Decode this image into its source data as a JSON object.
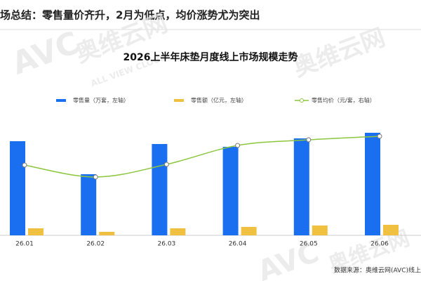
{
  "header": {
    "title": "场总结：零售量价齐升，2月为低点，均价涨势尤为突出"
  },
  "watermark": {
    "logo": "AVC",
    "name": "奥维云网",
    "tagline": "ALL VIEW CLOUD"
  },
  "source": "数据来源：奥维云网(AVC)线上",
  "chart_data": {
    "type": "bar",
    "title": "2026上半年床垫月度线上市场规模走势",
    "categories": [
      "26.01",
      "26.02",
      "26.03",
      "26.04",
      "26.05",
      "26.06"
    ],
    "series": [
      {
        "name": "零售量（万套，左轴）",
        "color": "#1a6ff0",
        "values": [
          134,
          87,
          130,
          126,
          138,
          146
        ]
      },
      {
        "name": "零售额（亿元，左轴）",
        "color": "#f0c040",
        "values": [
          10,
          5,
          10,
          12,
          14,
          15
        ]
      },
      {
        "name": "零售均价（元/套，右轴）",
        "color": "#8cc63f",
        "type": "line",
        "axis": "y2",
        "values": [
          100,
          83,
          101,
          128,
          136,
          141
        ]
      }
    ],
    "ylim": [
      0,
      165
    ],
    "y2lim": [
      0,
      165
    ],
    "grid": false,
    "legend": "top"
  }
}
